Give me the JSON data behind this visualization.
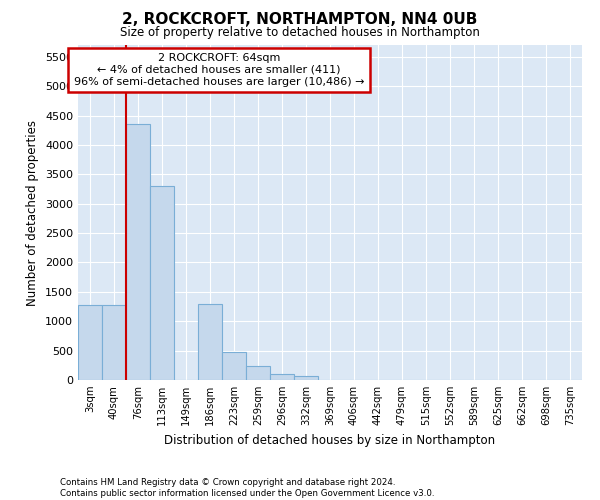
{
  "title": "2, ROCKCROFT, NORTHAMPTON, NN4 0UB",
  "subtitle": "Size of property relative to detached houses in Northampton",
  "xlabel": "Distribution of detached houses by size in Northampton",
  "ylabel": "Number of detached properties",
  "bar_color": "#c5d8ec",
  "bar_edge_color": "#7aaed6",
  "background_color": "#dce8f5",
  "grid_color": "#ffffff",
  "annotation_box_color": "#cc0000",
  "vline_color": "#cc0000",
  "vline_x": 1.5,
  "annotation_text": "2 ROCKCROFT: 64sqm\n← 4% of detached houses are smaller (411)\n96% of semi-detached houses are larger (10,486) →",
  "categories": [
    "3sqm",
    "40sqm",
    "76sqm",
    "113sqm",
    "149sqm",
    "186sqm",
    "223sqm",
    "259sqm",
    "296sqm",
    "332sqm",
    "369sqm",
    "406sqm",
    "442sqm",
    "479sqm",
    "515sqm",
    "552sqm",
    "589sqm",
    "625sqm",
    "662sqm",
    "698sqm",
    "735sqm"
  ],
  "bar_heights": [
    1270,
    1270,
    4350,
    3300,
    0,
    1290,
    480,
    240,
    100,
    70,
    0,
    0,
    0,
    0,
    0,
    0,
    0,
    0,
    0,
    0,
    0
  ],
  "ylim": [
    0,
    5700
  ],
  "yticks": [
    0,
    500,
    1000,
    1500,
    2000,
    2500,
    3000,
    3500,
    4000,
    4500,
    5000,
    5500
  ],
  "footer_line1": "Contains HM Land Registry data © Crown copyright and database right 2024.",
  "footer_line2": "Contains public sector information licensed under the Open Government Licence v3.0."
}
